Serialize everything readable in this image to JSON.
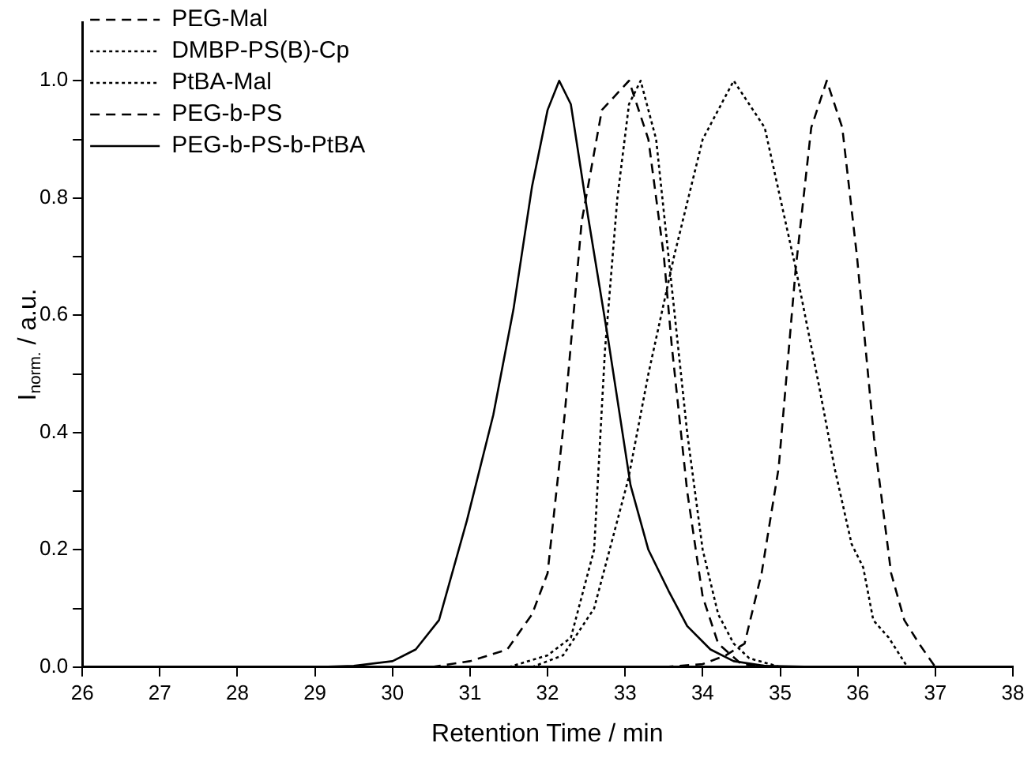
{
  "chart_data": {
    "type": "line",
    "xlabel": "Retention Time / min",
    "ylabel": "I$_{norm.}$ / a.u.",
    "xlim": [
      26,
      38
    ],
    "xticks": [
      26,
      27,
      28,
      29,
      30,
      31,
      32,
      33,
      34,
      35,
      36,
      37,
      38
    ],
    "ylim": [
      0,
      1.1
    ],
    "yticks": [
      {
        "value": 0,
        "label": "0.0"
      },
      {
        "value": 0.1,
        "label": null
      },
      {
        "value": 0.2,
        "label": "0.2"
      },
      {
        "value": 0.3,
        "label": null
      },
      {
        "value": 0.4,
        "label": "0.4"
      },
      {
        "value": 0.5,
        "label": null
      },
      {
        "value": 0.6,
        "label": "0.6"
      },
      {
        "value": 0.7,
        "label": null
      },
      {
        "value": 0.8,
        "label": "0.8"
      },
      {
        "value": 0.9,
        "label": null
      },
      {
        "value": 1,
        "label": "1.0"
      }
    ],
    "grid": false,
    "legend": "top left",
    "marker": "none",
    "series": [
      {
        "name": "PEG-Mal",
        "color": "#000000",
        "line_style": "dashed",
        "x": [
          33.5,
          34.0,
          34.3,
          34.54,
          34.76,
          34.98,
          35.2,
          35.4,
          35.6,
          35.8,
          35.99,
          36.21,
          36.43,
          36.6,
          36.79,
          37.0
        ],
        "values": [
          0,
          0.005,
          0.02,
          0.04,
          0.16,
          0.34,
          0.68,
          0.92,
          1.0,
          0.92,
          0.7,
          0.39,
          0.16,
          0.08,
          0.04,
          0
        ]
      },
      {
        "name": "DMBP-PS(B)-Cp",
        "color": "#000000",
        "line_style": "dotted",
        "x": [
          31.5,
          32.0,
          32.3,
          32.6,
          32.74,
          32.9,
          33.05,
          33.2,
          33.4,
          33.6,
          33.8,
          34.0,
          34.2,
          34.4,
          34.6,
          35.0
        ],
        "values": [
          0,
          0.02,
          0.05,
          0.2,
          0.54,
          0.8,
          0.96,
          1.0,
          0.9,
          0.65,
          0.4,
          0.2,
          0.09,
          0.04,
          0.015,
          0
        ]
      },
      {
        "name": "PtBA-Mal",
        "color": "#000000",
        "line_style": "dotted",
        "x": [
          31.8,
          32.2,
          32.6,
          33.04,
          33.3,
          33.63,
          34.0,
          34.4,
          34.8,
          35.2,
          35.5,
          35.7,
          35.92,
          36.07,
          36.2,
          36.4,
          36.64
        ],
        "values": [
          0,
          0.02,
          0.1,
          0.32,
          0.5,
          0.7,
          0.9,
          1.0,
          0.92,
          0.68,
          0.48,
          0.34,
          0.21,
          0.17,
          0.08,
          0.05,
          0
        ]
      },
      {
        "name": "PEG-b-PS",
        "color": "#000000",
        "line_style": "dashed",
        "x": [
          30.5,
          31.0,
          31.48,
          31.8,
          32.0,
          32.22,
          32.44,
          32.7,
          33.05,
          33.3,
          33.5,
          33.6,
          33.8,
          34.0,
          34.2,
          34.5,
          35.0
        ],
        "values": [
          0,
          0.01,
          0.03,
          0.09,
          0.16,
          0.43,
          0.76,
          0.95,
          1.0,
          0.9,
          0.7,
          0.55,
          0.3,
          0.12,
          0.04,
          0.005,
          0
        ]
      },
      {
        "name": "PEG-b-PS-b-PtBA",
        "color": "#000000",
        "line_style": "solid",
        "x": [
          26.5,
          29.0,
          29.5,
          30.0,
          30.3,
          30.6,
          30.96,
          31.3,
          31.56,
          31.8,
          32.0,
          32.15,
          32.3,
          32.52,
          32.78,
          33.07,
          33.3,
          33.56,
          33.8,
          34.1,
          34.4,
          34.8,
          35.5
        ],
        "values": [
          0,
          0,
          0.002,
          0.01,
          0.03,
          0.08,
          0.25,
          0.43,
          0.61,
          0.82,
          0.95,
          1.0,
          0.96,
          0.77,
          0.56,
          0.31,
          0.2,
          0.13,
          0.07,
          0.03,
          0.01,
          0.002,
          0
        ]
      }
    ]
  }
}
